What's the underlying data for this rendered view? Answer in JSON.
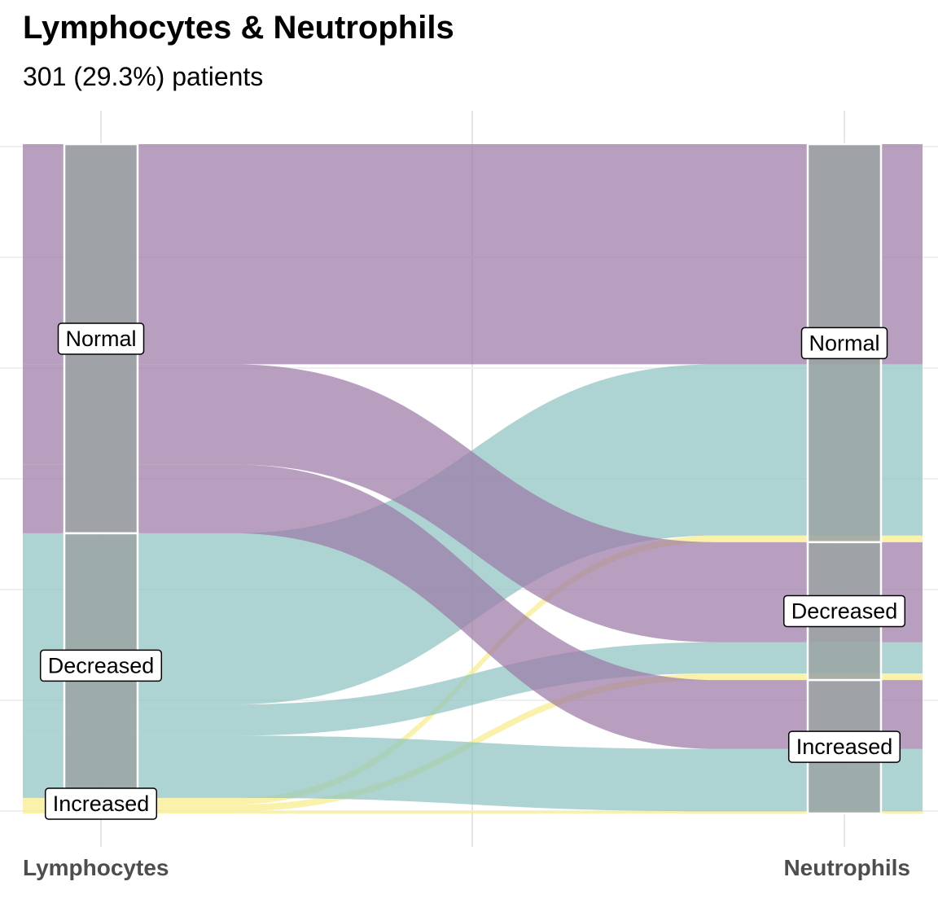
{
  "title": "Lymphocytes & Neutrophils",
  "subtitle": "301 (29.3%) patients",
  "chart_data": {
    "type": "alluvial",
    "axes": [
      "Lymphocytes",
      "Neutrophils"
    ],
    "strata": [
      "Normal",
      "Decreased",
      "Increased"
    ],
    "stack_order_top_to_bottom": [
      "Normal",
      "Decreased",
      "Increased"
    ],
    "colors": {
      "Normal": "#9C7AA6",
      "Decreased": "#8EC4C1",
      "Increased": "#F8ED8A"
    },
    "node_color": "#9AA3A3",
    "flows": [
      {
        "from": "Normal",
        "to": "Normal",
        "value": 99
      },
      {
        "from": "Normal",
        "to": "Decreased",
        "value": 45
      },
      {
        "from": "Normal",
        "to": "Increased",
        "value": 31
      },
      {
        "from": "Decreased",
        "to": "Normal",
        "value": 77
      },
      {
        "from": "Decreased",
        "to": "Decreased",
        "value": 14
      },
      {
        "from": "Decreased",
        "to": "Increased",
        "value": 28
      },
      {
        "from": "Increased",
        "to": "Normal",
        "value": 3
      },
      {
        "from": "Increased",
        "to": "Decreased",
        "value": 3
      },
      {
        "from": "Increased",
        "to": "Increased",
        "value": 1
      }
    ]
  }
}
